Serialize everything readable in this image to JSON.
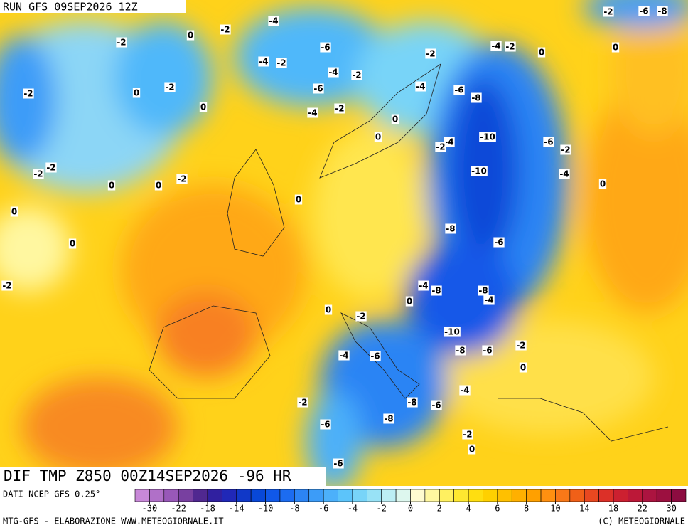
{
  "header": {
    "run": "RUN GFS 09SEP2026 12Z",
    "title": "DIF TMP Z850 00Z14SEP2026 -96 HR"
  },
  "map": {
    "contour_labels": [
      -4,
      -2,
      0,
      -2,
      -6,
      -4,
      -2,
      0,
      0,
      -2,
      -4,
      -2,
      -4,
      -2,
      -6,
      -4,
      -6,
      -8,
      -2,
      -2,
      0,
      0,
      -4,
      -2,
      0,
      0,
      -10,
      -4,
      -2,
      -6,
      -2,
      -10,
      -4,
      0,
      -2,
      -2,
      -2,
      0,
      0,
      0,
      0,
      -8,
      -6,
      0,
      -2,
      -4,
      -8,
      -8,
      -4,
      0,
      0,
      -2,
      -10,
      -8,
      -6,
      -2,
      0,
      -4,
      -6,
      -4,
      -2,
      -8,
      -6,
      -8,
      -6,
      -2,
      0,
      -6,
      -2,
      -6,
      -8
    ]
  },
  "colorbar": {
    "colors": [
      "#c888d8",
      "#b070c8",
      "#9858b8",
      "#7840a0",
      "#502890",
      "#3020a0",
      "#2028b8",
      "#1038c8",
      "#0848d8",
      "#1058e8",
      "#1c6cf0",
      "#2c84f4",
      "#3c9cf8",
      "#4cb0fa",
      "#5cc4fa",
      "#78d4f8",
      "#98e2f6",
      "#bceef4",
      "#ddf7ee",
      "#fffbd0",
      "#fff7a0",
      "#fff060",
      "#ffe830",
      "#ffde10",
      "#ffd000",
      "#ffc000",
      "#ffb000",
      "#ffa000",
      "#ff9010",
      "#f87818",
      "#f06018",
      "#e84820",
      "#dc3028",
      "#cc2030",
      "#bc1838",
      "#ac1440",
      "#9c1040",
      "#8c0c40"
    ],
    "ticks": [
      -30,
      -22,
      -18,
      -14,
      -10,
      -8,
      -6,
      -4,
      -2,
      0,
      2,
      4,
      6,
      8,
      10,
      14,
      18,
      22,
      30
    ]
  },
  "footer": {
    "source": "DATI NCEP GFS 0.25°",
    "left": "MTG-GFS - ELABORAZIONE WWW.METEOGIORNALE.IT",
    "right": "(C) METEOGIORNALE"
  }
}
